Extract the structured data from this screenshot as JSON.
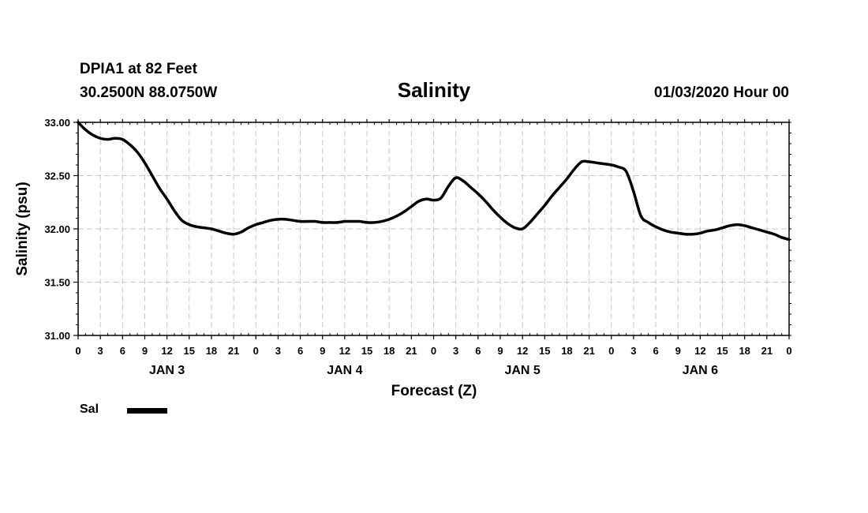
{
  "header": {
    "station": "DPIA1 at 82 Feet",
    "coords": "30.2500N 88.0750W",
    "title": "Salinity",
    "timestamp": "01/03/2020 Hour 00"
  },
  "legend": {
    "label": "Sal",
    "color": "#000000"
  },
  "chart_data": {
    "type": "line",
    "title": "Salinity",
    "xlabel": "Forecast (Z)",
    "ylabel": "Salinity (psu)",
    "ylim": [
      31.0,
      33.0
    ],
    "xlim": [
      0,
      96
    ],
    "grid": true,
    "yticks": [
      "31.00",
      "31.50",
      "32.00",
      "32.50",
      "33.00"
    ],
    "ytick_values": [
      31.0,
      31.5,
      32.0,
      32.5,
      33.0
    ],
    "xtick_labels": [
      "0",
      "3",
      "6",
      "9",
      "12",
      "15",
      "18",
      "21",
      "0",
      "3",
      "6",
      "9",
      "12",
      "15",
      "18",
      "21",
      "0",
      "3",
      "6",
      "9",
      "12",
      "15",
      "18",
      "21",
      "0",
      "3",
      "6",
      "9",
      "12",
      "15",
      "18",
      "21",
      "0"
    ],
    "day_labels": [
      {
        "label": "JAN 3",
        "hour": 12
      },
      {
        "label": "JAN 4",
        "hour": 36
      },
      {
        "label": "JAN 5",
        "hour": 60
      },
      {
        "label": "JAN 6",
        "hour": 84
      }
    ],
    "series": [
      {
        "name": "Sal",
        "x": [
          0,
          1,
          2,
          3,
          4,
          5,
          6,
          7,
          8,
          9,
          10,
          11,
          12,
          13,
          14,
          15,
          16,
          17,
          18,
          19,
          20,
          21,
          22,
          23,
          24,
          25,
          26,
          27,
          28,
          29,
          30,
          31,
          32,
          33,
          34,
          35,
          36,
          37,
          38,
          39,
          40,
          41,
          42,
          43,
          44,
          45,
          46,
          47,
          48,
          49,
          50,
          51,
          52,
          53,
          54,
          55,
          56,
          57,
          58,
          59,
          60,
          61,
          62,
          63,
          64,
          65,
          66,
          67,
          68,
          69,
          70,
          71,
          72,
          73,
          74,
          75,
          76,
          77,
          78,
          79,
          80,
          81,
          82,
          83,
          84,
          85,
          86,
          87,
          88,
          89,
          90,
          91,
          92,
          93,
          94,
          95,
          96
        ],
        "values": [
          33.0,
          32.93,
          32.88,
          32.85,
          32.84,
          32.85,
          32.84,
          32.79,
          32.72,
          32.62,
          32.5,
          32.38,
          32.28,
          32.17,
          32.08,
          32.04,
          32.02,
          32.01,
          32.0,
          31.98,
          31.96,
          31.95,
          31.97,
          32.01,
          32.04,
          32.06,
          32.08,
          32.09,
          32.09,
          32.08,
          32.07,
          32.07,
          32.07,
          32.06,
          32.06,
          32.06,
          32.07,
          32.07,
          32.07,
          32.06,
          32.06,
          32.07,
          32.09,
          32.12,
          32.16,
          32.21,
          32.26,
          32.28,
          32.27,
          32.29,
          32.4,
          32.48,
          32.45,
          32.39,
          32.33,
          32.26,
          32.18,
          32.11,
          32.05,
          32.01,
          32.0,
          32.06,
          32.14,
          32.22,
          32.31,
          32.39,
          32.47,
          32.56,
          32.63,
          32.63,
          32.62,
          32.61,
          32.6,
          32.58,
          32.54,
          32.35,
          32.12,
          32.06,
          32.02,
          31.99,
          31.97,
          31.96,
          31.95,
          31.95,
          31.96,
          31.98,
          31.99,
          32.01,
          32.03,
          32.04,
          32.03,
          32.01,
          31.99,
          31.97,
          31.95,
          31.92,
          31.9
        ]
      }
    ]
  }
}
